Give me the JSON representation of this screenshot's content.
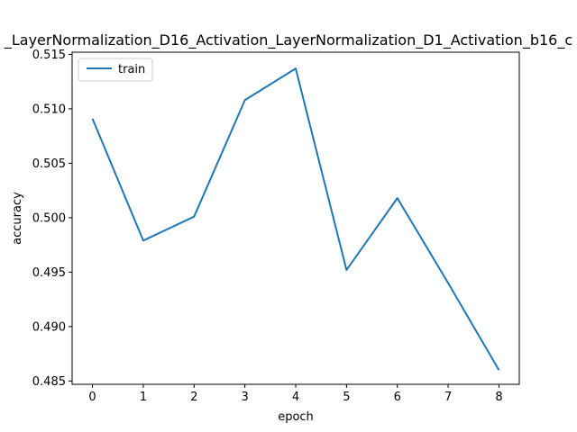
{
  "chart_data": {
    "type": "line",
    "title": "_LayerNormalization_D16_Activation_LayerNormalization_D1_Activation_b16_c",
    "xlabel": "epoch",
    "ylabel": "accuracy",
    "x": [
      0,
      1,
      2,
      3,
      4,
      5,
      6,
      7,
      8
    ],
    "xticks": [
      "0",
      "1",
      "2",
      "3",
      "4",
      "5",
      "6",
      "7",
      "8"
    ],
    "yticks": [
      "0.485",
      "0.490",
      "0.495",
      "0.500",
      "0.505",
      "0.510",
      "0.515"
    ],
    "xlim": [
      -0.4,
      8.4
    ],
    "ylim": [
      0.4847,
      0.5152
    ],
    "grid": false,
    "legend_position": "upper-left",
    "series": [
      {
        "name": "train",
        "color": "#1f77b4",
        "values": [
          0.5091,
          0.4979,
          0.5001,
          0.5108,
          0.5137,
          0.4952,
          0.5018,
          0.494,
          0.486
        ]
      }
    ]
  }
}
